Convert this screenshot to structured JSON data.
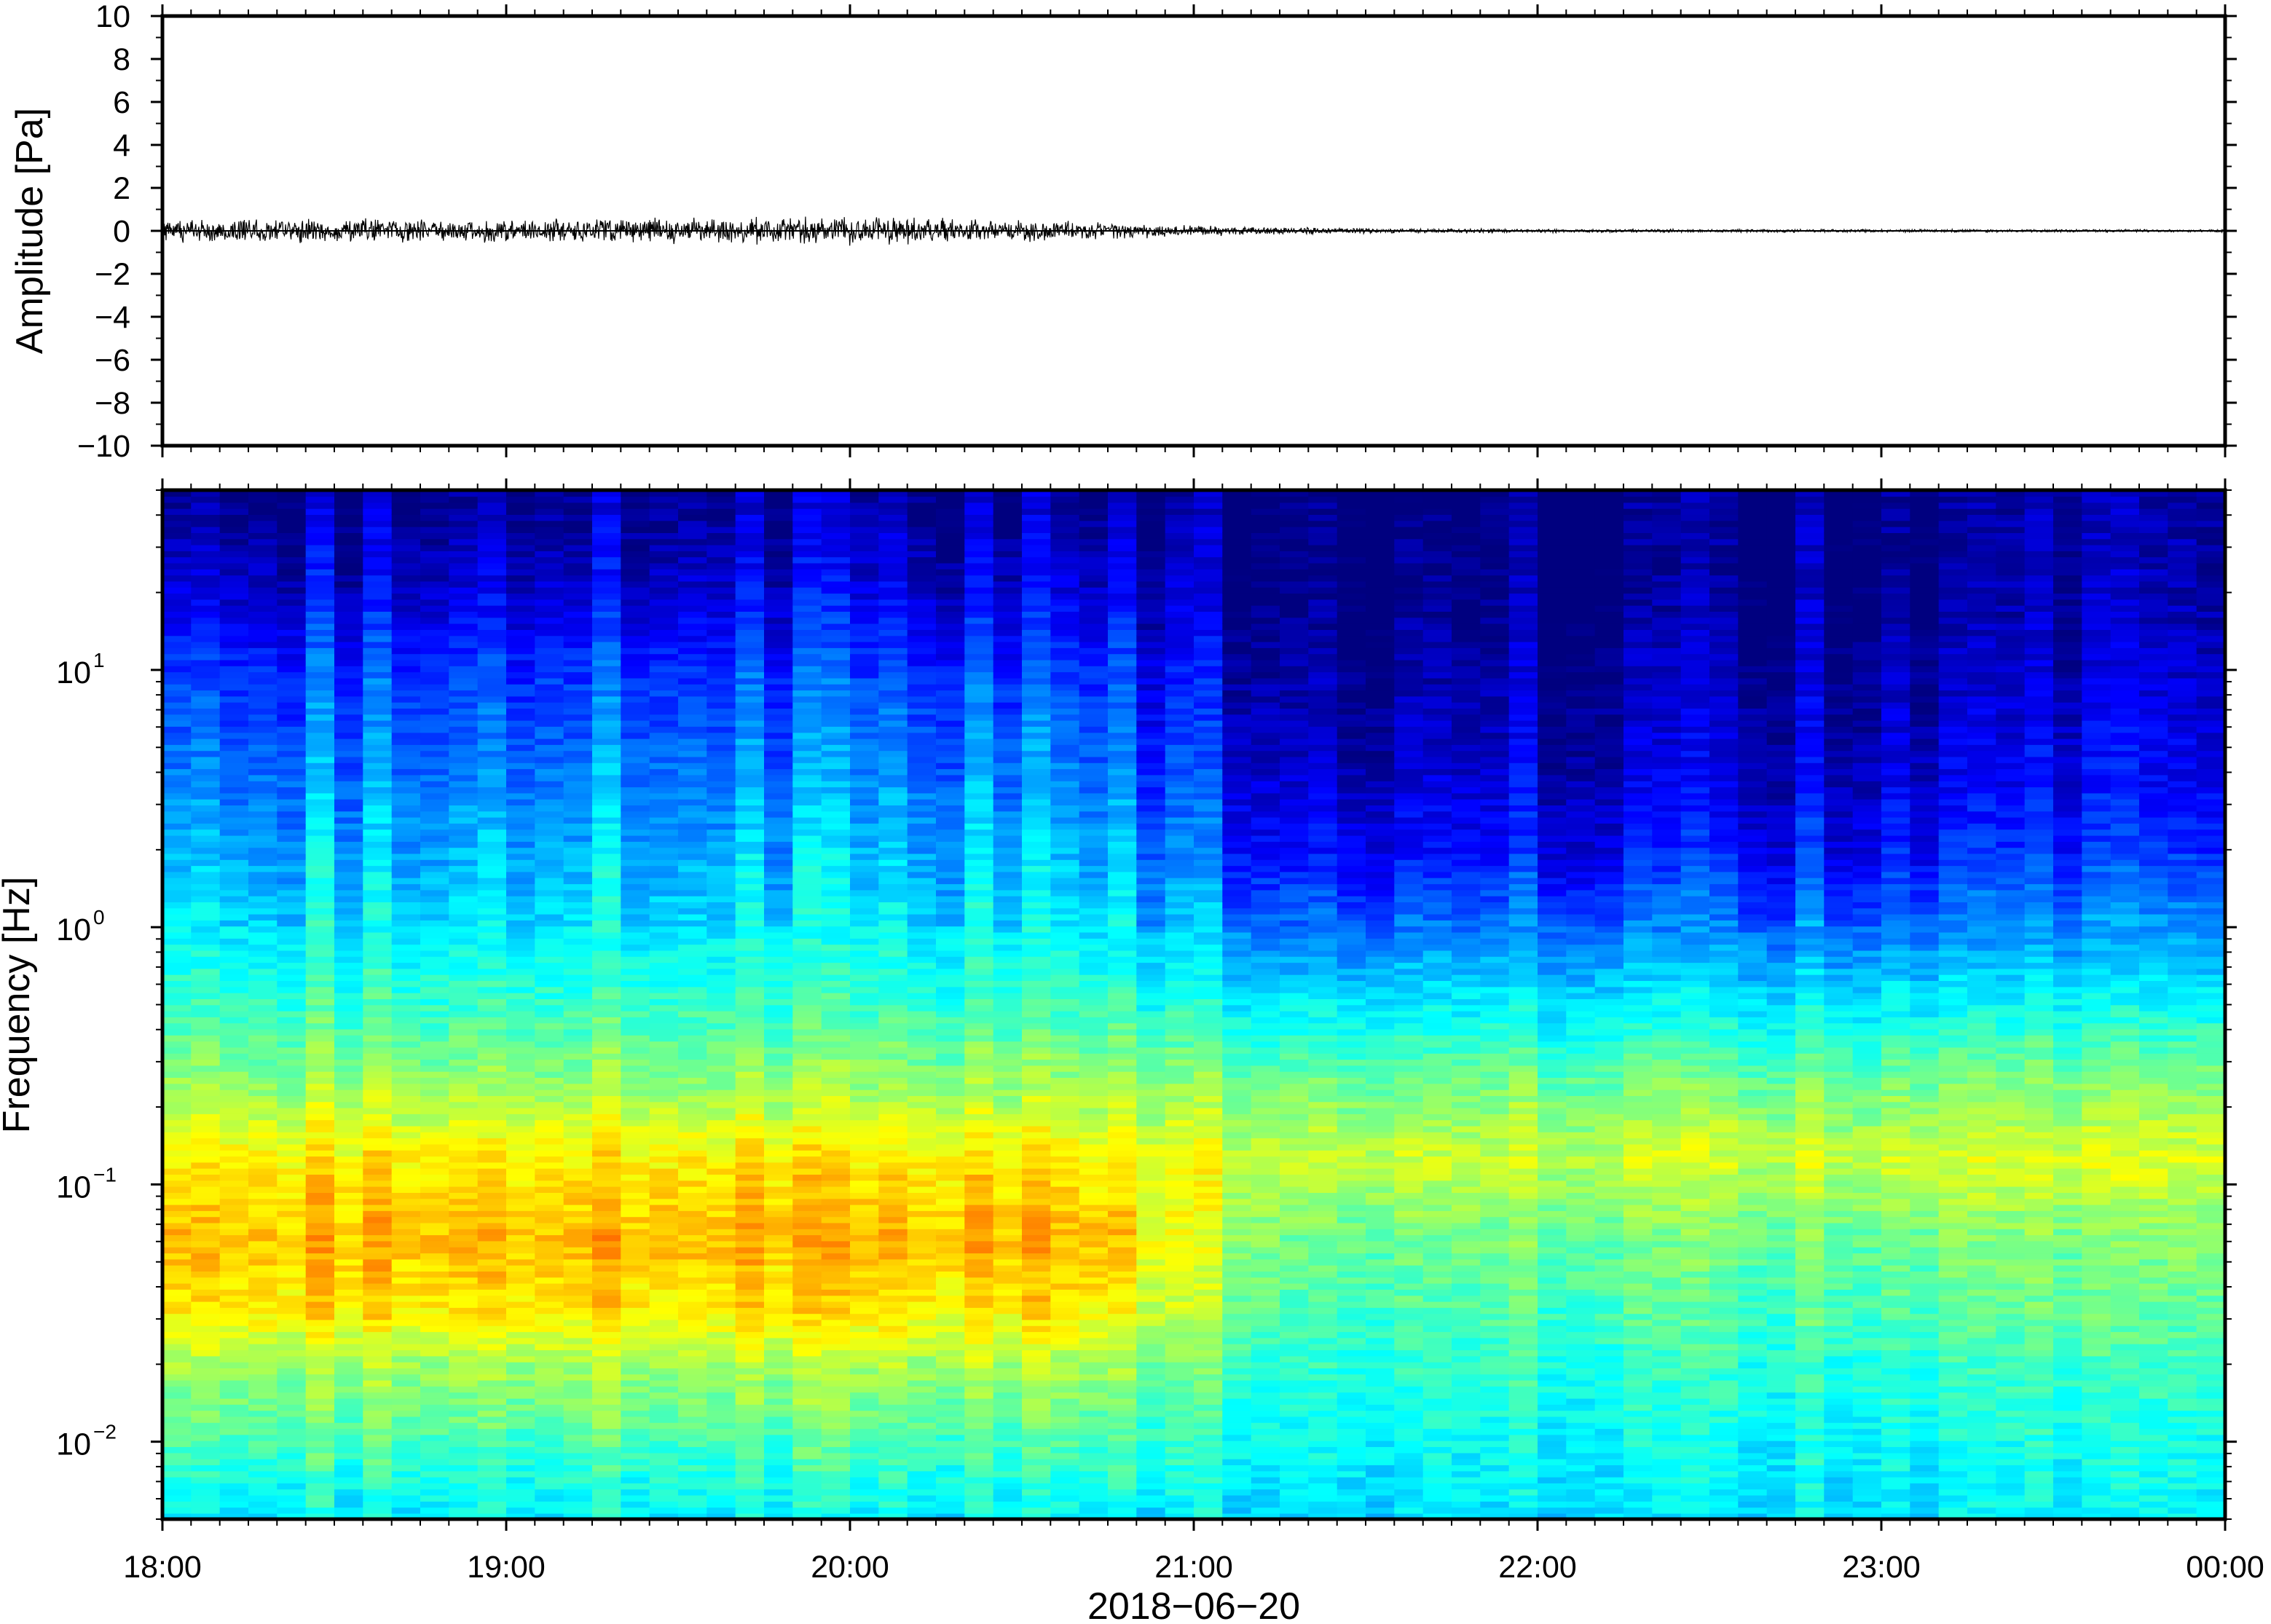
{
  "chart_data": [
    {
      "type": "line",
      "title": "",
      "ylabel": "Amplitude [Pa]",
      "ylim": [
        -10,
        10
      ],
      "yticks": [
        -10,
        -8,
        -6,
        -4,
        -2,
        0,
        2,
        4,
        6,
        8,
        10
      ],
      "ytick_labels": [
        "−10",
        "−8",
        "−6",
        "−4",
        "−2",
        "0",
        "2",
        "4",
        "6",
        "8",
        "10"
      ],
      "series": [
        {
          "color": "#000000",
          "envelope_hours": [
            0,
            0.5,
            1,
            1.5,
            2,
            2.5,
            2.9,
            3.2,
            3.6,
            4,
            4.5,
            5,
            5.5,
            6
          ],
          "envelope_pa": [
            0.6,
            0.6,
            0.6,
            0.65,
            0.7,
            0.55,
            0.35,
            0.2,
            0.12,
            0.1,
            0.08,
            0.08,
            0.07,
            0.07
          ]
        }
      ]
    },
    {
      "type": "heatmap",
      "ylabel": "Frequency [Hz]",
      "xlabel": "2018−06−20",
      "yscale": "log",
      "ylim": [
        0.005,
        50
      ],
      "yticks": [
        0.01,
        0.1,
        1,
        10
      ],
      "ytick_labels": [
        {
          "base": "10",
          "exp": "−2"
        },
        {
          "base": "10",
          "exp": "−1"
        },
        {
          "base": "10",
          "exp": "0"
        },
        {
          "base": "10",
          "exp": "1"
        }
      ],
      "x_ticks": [
        "18:00",
        "19:00",
        "20:00",
        "21:00",
        "22:00",
        "23:00",
        "00:00"
      ],
      "x_range_hours": [
        0,
        6
      ],
      "colormap": "jet",
      "colors": [
        "#00007f",
        "#0000ff",
        "#007fff",
        "#00ffff",
        "#7fff7f",
        "#ffff00",
        "#ff7f00",
        "#ff0000"
      ],
      "profile_log10_hz": [
        -2.3,
        -2,
        -1.7,
        -1.5,
        -1.2,
        -0.9,
        -0.6,
        -0.3,
        0,
        0.3,
        0.6,
        1,
        1.3,
        1.7
      ],
      "profile_early_db": [
        0.42,
        0.52,
        0.62,
        0.74,
        0.8,
        0.74,
        0.6,
        0.5,
        0.42,
        0.36,
        0.3,
        0.22,
        0.12,
        0.04
      ],
      "profile_late_db": [
        0.4,
        0.44,
        0.48,
        0.52,
        0.56,
        0.66,
        0.56,
        0.42,
        0.28,
        0.16,
        0.1,
        0.05,
        0.02,
        0.01
      ],
      "transition_hours": [
        2.7,
        3.3
      ]
    }
  ]
}
